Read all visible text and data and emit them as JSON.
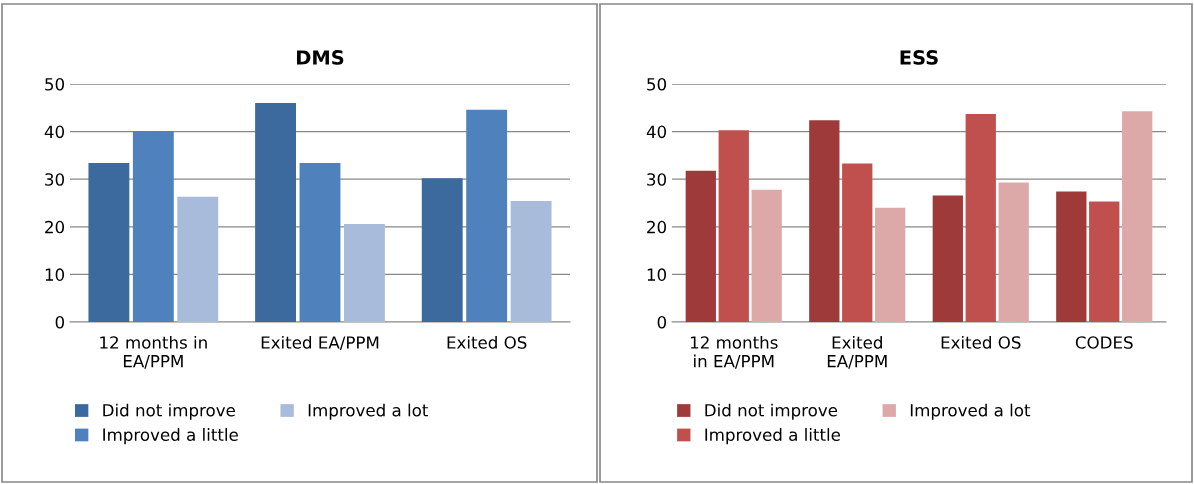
{
  "chart_data": [
    {
      "type": "bar",
      "title": "DMS",
      "categories": [
        "12 months in\nEA/PPM",
        "Exited EA/PPM",
        "Exited OS"
      ],
      "series": [
        {
          "name": "Did not improve",
          "color": "#3d6a9e",
          "values": [
            33.4,
            46.0,
            30.2
          ]
        },
        {
          "name": "Improved a little",
          "color": "#4f81bd",
          "values": [
            40.1,
            33.4,
            44.6
          ]
        },
        {
          "name": "Improved a lot",
          "color": "#a9bbdb",
          "values": [
            26.3,
            20.6,
            25.4
          ]
        }
      ],
      "ylim": [
        0,
        50
      ],
      "yticks": [
        0,
        10,
        20,
        30,
        40,
        50
      ],
      "grid": "y",
      "legend": "bottom"
    },
    {
      "type": "bar",
      "title": "ESS",
      "categories": [
        "12 months\nin EA/PPM",
        "Exited\nEA/PPM",
        "Exited OS",
        "CODES"
      ],
      "series": [
        {
          "name": "Did not improve",
          "color": "#9e3b3a",
          "values": [
            31.8,
            42.4,
            26.6,
            27.4
          ]
        },
        {
          "name": "Improved a little",
          "color": "#c0504d",
          "values": [
            40.3,
            33.3,
            43.7,
            25.3
          ]
        },
        {
          "name": "Improved a lot",
          "color": "#dca9a8",
          "values": [
            27.8,
            24.0,
            29.3,
            44.3
          ]
        }
      ],
      "ylim": [
        0,
        50
      ],
      "yticks": [
        0,
        10,
        20,
        30,
        40,
        50
      ],
      "grid": "y",
      "legend": "bottom"
    }
  ]
}
